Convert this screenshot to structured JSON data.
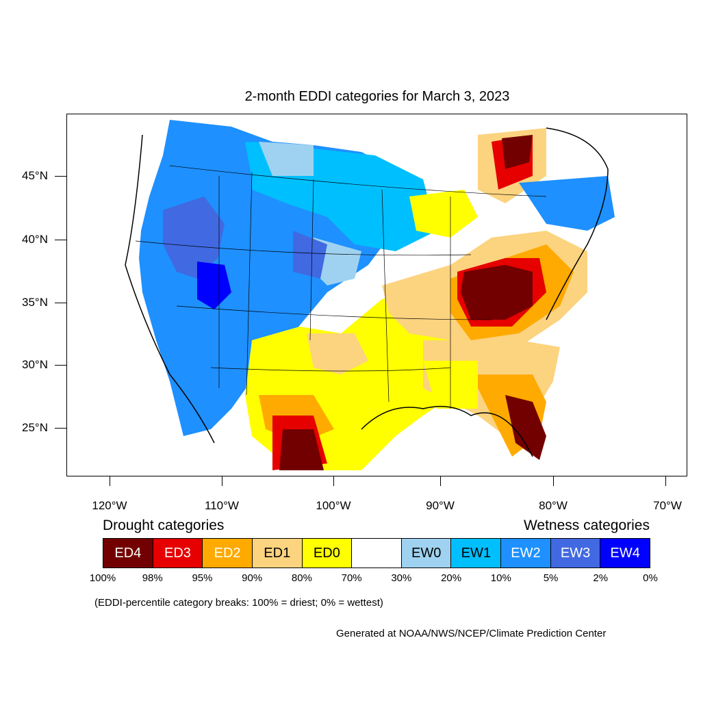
{
  "title": "2-month EDDI categories for March 3, 2023",
  "lat_labels": [
    "45°N",
    "40°N",
    "35°N",
    "30°N",
    "25°N"
  ],
  "lon_labels": [
    "120°W",
    "110°W",
    "100°W",
    "90°W",
    "80°W",
    "70°W"
  ],
  "legend": {
    "drought_heading": "Drought categories",
    "wetness_heading": "Wetness categories",
    "categories": [
      {
        "label": "ED4",
        "color": "#730000",
        "text_color": "#ffffff"
      },
      {
        "label": "ED3",
        "color": "#e60000",
        "text_color": "#ffffff"
      },
      {
        "label": "ED2",
        "color": "#ffaa00",
        "text_color": "#ffffff"
      },
      {
        "label": "ED1",
        "color": "#fcd37f",
        "text_color": "#000000"
      },
      {
        "label": "ED0",
        "color": "#ffff00",
        "text_color": "#000000"
      },
      {
        "label": "",
        "color": "#ffffff",
        "text_color": "#000000"
      },
      {
        "label": "EW0",
        "color": "#9fd2f0",
        "text_color": "#000000"
      },
      {
        "label": "EW1",
        "color": "#00bfff",
        "text_color": "#000000"
      },
      {
        "label": "EW2",
        "color": "#1e90ff",
        "text_color": "#ffffff"
      },
      {
        "label": "EW3",
        "color": "#4169e1",
        "text_color": "#ffffff"
      },
      {
        "label": "EW4",
        "color": "#0000ff",
        "text_color": "#ffffff"
      }
    ],
    "percent_breaks": [
      "100%",
      "98%",
      "95%",
      "90%",
      "80%",
      "70%",
      "30%",
      "20%",
      "10%",
      "5%",
      "2%",
      "0%"
    ]
  },
  "note": "(EDDI-percentile category breaks: 100% = driest; 0% = wettest)",
  "credit": "Generated at NOAA/NWS/NCEP/Climate Prediction Center"
}
